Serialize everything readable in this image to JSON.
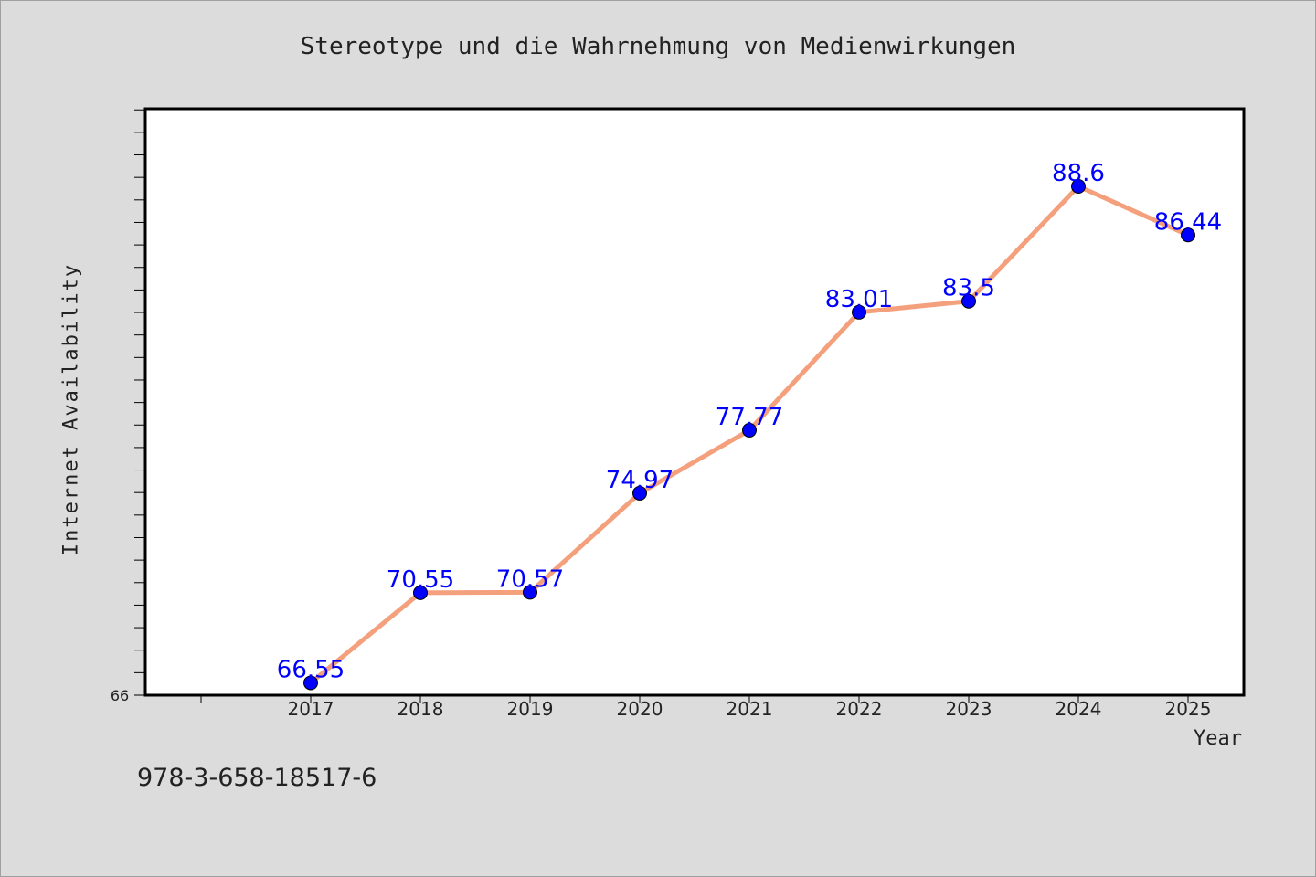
{
  "chart_data": {
    "type": "line",
    "title": "Stereotype und die Wahrnehmung von Medienwirkungen",
    "xlabel": "Year",
    "ylabel": "Internet Availability",
    "categories": [
      "2017",
      "2018",
      "2019",
      "2020",
      "2021",
      "2022",
      "2023",
      "2024",
      "2025"
    ],
    "series": [
      {
        "values": [
          66.55,
          70.55,
          70.57,
          74.97,
          77.77,
          83.01,
          83.5,
          88.6,
          86.44
        ],
        "labels": [
          "66.55",
          "70.55",
          "70.57",
          "74.97",
          "77.77",
          "83.01",
          "83.5",
          "88.6",
          "86.44"
        ]
      }
    ],
    "ylim": [
      66,
      92.05
    ],
    "y_tick_label": "66",
    "line_color": "#f4a07c",
    "marker_color": "#0000ff",
    "label_color": "#0000ff",
    "grid": false
  },
  "footer": {
    "isbn": "978-3-658-18517-6"
  }
}
